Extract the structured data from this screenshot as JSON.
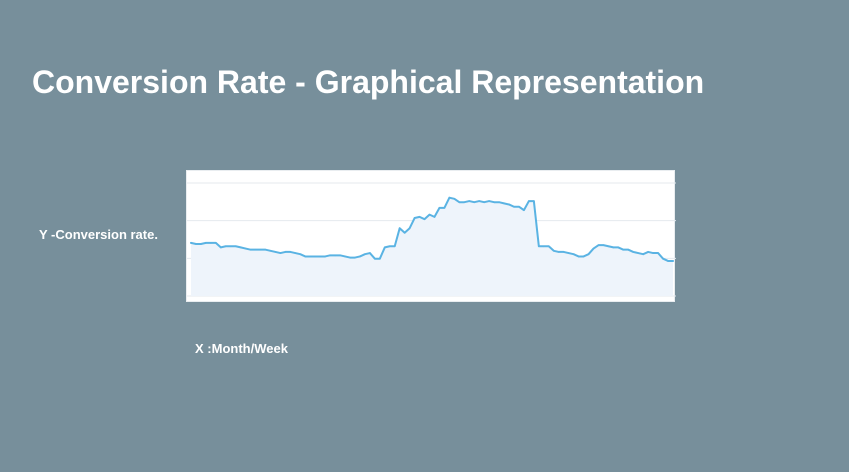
{
  "slide": {
    "title": "Conversion Rate - Graphical Representation",
    "y_label": "Y -Conversion rate.",
    "x_label": "X :Month/Week"
  },
  "colors": {
    "background": "#778f9b",
    "line": "#5ab3e3",
    "fill": "#eef4fb",
    "grid": "#e4e9ee"
  },
  "chart_data": {
    "type": "area",
    "title": "",
    "xlabel": "X :Month/Week",
    "ylabel": "Y -Conversion rate.",
    "grid": true,
    "ylim": [
      0,
      1
    ],
    "x": [
      0,
      1,
      2,
      3,
      4,
      5,
      6,
      7,
      8,
      9,
      10,
      11,
      12,
      13,
      14,
      15,
      16,
      17,
      18,
      19,
      20,
      21,
      22,
      23,
      24,
      25,
      26,
      27,
      28,
      29,
      30,
      31,
      32,
      33,
      34,
      35,
      36,
      37,
      38,
      39,
      40,
      41,
      42,
      43,
      44,
      45,
      46,
      47,
      48,
      49,
      50,
      51,
      52,
      53,
      54,
      55,
      56,
      57,
      58,
      59,
      60,
      61,
      62,
      63,
      64,
      65,
      66,
      67,
      68,
      69,
      70,
      71,
      72,
      73,
      74,
      75,
      76,
      77,
      78,
      79,
      80,
      81,
      82,
      83,
      84,
      85,
      86,
      87,
      88,
      89,
      90,
      91,
      92,
      93,
      94,
      95,
      96,
      97
    ],
    "series": [
      {
        "values": [
          0.47,
          0.46,
          0.46,
          0.47,
          0.47,
          0.47,
          0.43,
          0.44,
          0.44,
          0.44,
          0.43,
          0.42,
          0.41,
          0.41,
          0.41,
          0.41,
          0.4,
          0.39,
          0.38,
          0.39,
          0.39,
          0.38,
          0.37,
          0.35,
          0.35,
          0.35,
          0.35,
          0.35,
          0.36,
          0.36,
          0.36,
          0.35,
          0.34,
          0.34,
          0.35,
          0.37,
          0.38,
          0.33,
          0.33,
          0.43,
          0.44,
          0.44,
          0.6,
          0.56,
          0.6,
          0.69,
          0.7,
          0.68,
          0.72,
          0.7,
          0.78,
          0.78,
          0.87,
          0.86,
          0.83,
          0.83,
          0.84,
          0.83,
          0.84,
          0.83,
          0.84,
          0.83,
          0.83,
          0.82,
          0.81,
          0.79,
          0.79,
          0.76,
          0.84,
          0.84,
          0.44,
          0.44,
          0.44,
          0.4,
          0.39,
          0.39,
          0.38,
          0.37,
          0.35,
          0.35,
          0.37,
          0.42,
          0.45,
          0.45,
          0.44,
          0.43,
          0.43,
          0.41,
          0.41,
          0.39,
          0.38,
          0.37,
          0.39,
          0.38,
          0.38,
          0.33,
          0.31,
          0.31
        ]
      }
    ]
  }
}
